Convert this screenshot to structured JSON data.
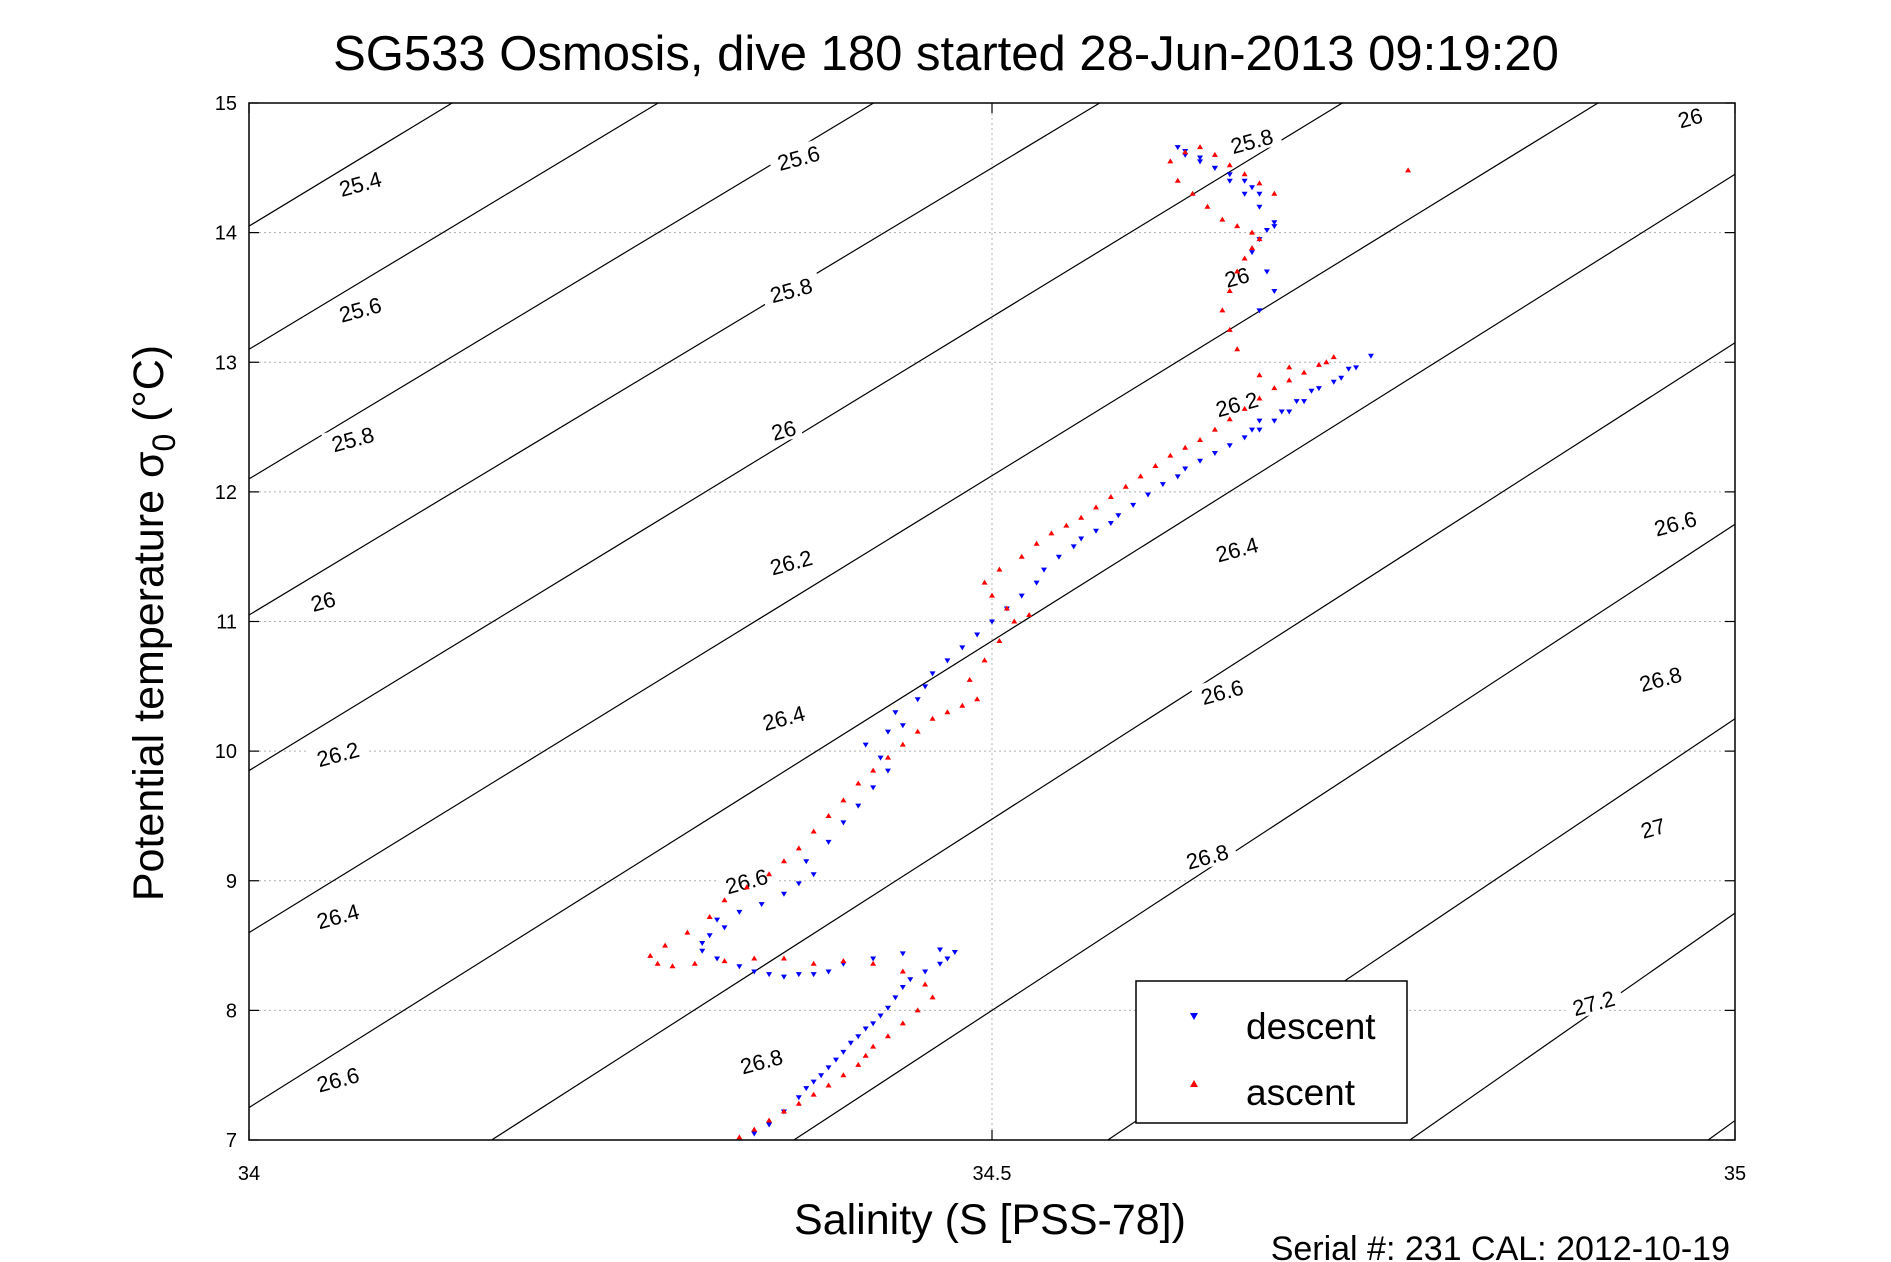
{
  "title": "SG533 Osmosis, dive 180 started 28-Jun-2013 09:19:20",
  "footer": "Serial #: 231  CAL: 2012-10-19",
  "chart_data": {
    "type": "scatter",
    "title": "SG533 Osmosis, dive 180 started 28-Jun-2013 09:19:20",
    "xlabel": "Salinity (S [PSS-78])",
    "ylabel_main": "Potential temperature σ",
    "ylabel_sub": "0",
    "ylabel_tail": " (°C)",
    "xlim": [
      34,
      35
    ],
    "ylim": [
      7,
      15
    ],
    "xticks": [
      34,
      34.5,
      35
    ],
    "xtick_labels": [
      "34",
      "34.5",
      "35"
    ],
    "yticks": [
      7,
      8,
      9,
      10,
      11,
      12,
      13,
      14,
      15
    ],
    "ytick_labels": [
      "7",
      "8",
      "9",
      "10",
      "11",
      "12",
      "13",
      "14",
      "15"
    ],
    "grid": true,
    "legend_position": "bottom-right",
    "colors": {
      "descent": "#0000ff",
      "ascent": "#ff0000",
      "contour": "#000000",
      "grid": "#b0b0b0"
    },
    "contour_levels": [
      "25.4",
      "25.6",
      "25.8",
      "26",
      "26.2",
      "26.4",
      "26.6",
      "26.8",
      "27",
      "27.2"
    ],
    "series": [
      {
        "name": "descent",
        "marker": "triangle-down",
        "x": [
          34.34,
          34.35,
          34.36,
          34.37,
          34.375,
          34.38,
          34.385,
          34.39,
          34.395,
          34.4,
          34.405,
          34.41,
          34.415,
          34.42,
          34.425,
          34.43,
          34.435,
          34.44,
          34.445,
          34.455,
          34.465,
          34.47,
          34.475,
          34.465,
          34.44,
          34.42,
          34.4,
          34.39,
          34.38,
          34.37,
          34.36,
          34.35,
          34.34,
          34.33,
          34.315,
          34.305,
          34.305,
          34.31,
          34.32,
          34.315,
          34.33,
          34.345,
          34.36,
          34.37,
          34.38,
          34.375,
          34.39,
          34.4,
          34.41,
          34.42,
          34.43,
          34.425,
          34.415,
          34.43,
          34.44,
          34.435,
          34.45,
          34.455,
          34.46,
          34.47,
          34.48,
          34.49,
          34.5,
          34.51,
          34.52,
          34.53,
          34.535,
          34.545,
          34.555,
          34.56,
          34.57,
          34.58,
          34.585,
          34.595,
          34.605,
          34.615,
          34.625,
          34.63,
          34.64,
          34.65,
          34.66,
          34.67,
          34.68,
          34.69,
          34.7,
          34.71,
          34.72,
          34.735,
          34.745,
          34.755,
          34.74,
          34.73,
          34.715,
          34.705,
          34.695,
          34.68,
          34.675,
          34.68,
          34.69,
          34.685,
          34.675,
          34.68,
          34.685,
          34.69,
          34.68,
          34.67,
          34.66,
          34.65,
          34.64,
          34.63,
          34.625,
          34.63,
          34.64,
          34.65,
          34.66,
          34.67,
          34.675,
          34.68,
          34.69
        ],
        "y": [
          7.05,
          7.12,
          7.22,
          7.33,
          7.4,
          7.45,
          7.5,
          7.56,
          7.62,
          7.68,
          7.75,
          7.8,
          7.86,
          7.9,
          7.96,
          8.02,
          8.1,
          8.18,
          8.24,
          8.3,
          8.36,
          8.4,
          8.45,
          8.47,
          8.44,
          8.4,
          8.36,
          8.3,
          8.28,
          8.28,
          8.26,
          8.28,
          8.3,
          8.34,
          8.4,
          8.46,
          8.52,
          8.58,
          8.64,
          8.7,
          8.76,
          8.82,
          8.9,
          8.98,
          9.05,
          9.15,
          9.3,
          9.45,
          9.58,
          9.72,
          9.85,
          9.95,
          10.05,
          10.15,
          10.2,
          10.3,
          10.4,
          10.5,
          10.6,
          10.7,
          10.8,
          10.9,
          11.0,
          11.1,
          11.2,
          11.3,
          11.4,
          11.5,
          11.58,
          11.64,
          11.7,
          11.76,
          11.82,
          11.9,
          11.98,
          12.06,
          12.12,
          12.18,
          12.24,
          12.3,
          12.36,
          12.42,
          12.48,
          12.55,
          12.62,
          12.7,
          12.8,
          12.88,
          12.96,
          13.05,
          12.95,
          12.85,
          12.78,
          12.7,
          12.62,
          12.55,
          12.48,
          13.4,
          13.55,
          13.7,
          13.85,
          13.95,
          14.02,
          14.08,
          14.2,
          14.3,
          14.4,
          14.5,
          14.58,
          14.63,
          14.66,
          14.6,
          14.55,
          14.5,
          14.45,
          14.4,
          14.35,
          14.3,
          14.05
        ]
      },
      {
        "name": "ascent",
        "marker": "triangle-up",
        "x": [
          34.33,
          34.34,
          34.35,
          34.36,
          34.37,
          34.38,
          34.39,
          34.4,
          34.41,
          34.415,
          34.42,
          34.43,
          34.44,
          34.45,
          34.46,
          34.455,
          34.44,
          34.42,
          34.4,
          34.38,
          34.36,
          34.34,
          34.32,
          34.3,
          34.285,
          34.275,
          34.27,
          34.28,
          34.295,
          34.31,
          34.32,
          34.335,
          34.35,
          34.36,
          34.37,
          34.38,
          34.39,
          34.4,
          34.41,
          34.42,
          34.43,
          34.44,
          34.45,
          34.46,
          34.47,
          34.48,
          34.49,
          34.485,
          34.495,
          34.505,
          34.515,
          34.525,
          34.51,
          34.5,
          34.495,
          34.505,
          34.52,
          34.53,
          34.54,
          34.55,
          34.56,
          34.57,
          34.58,
          34.59,
          34.6,
          34.61,
          34.62,
          34.63,
          34.64,
          34.65,
          34.66,
          34.67,
          34.68,
          34.69,
          34.7,
          34.71,
          34.72,
          34.73,
          34.725,
          34.7,
          34.68,
          34.665,
          34.66,
          34.655,
          34.66,
          34.665,
          34.67,
          34.675,
          34.68,
          34.675,
          34.665,
          34.655,
          34.645,
          34.635,
          34.625,
          34.62,
          34.63,
          34.64,
          34.65,
          34.66,
          34.67,
          34.68,
          34.69,
          34.78
        ],
        "y": [
          7.02,
          7.08,
          7.15,
          7.22,
          7.28,
          7.35,
          7.42,
          7.5,
          7.58,
          7.65,
          7.72,
          7.8,
          7.9,
          8.0,
          8.1,
          8.2,
          8.3,
          8.36,
          8.38,
          8.36,
          8.4,
          8.4,
          8.38,
          8.36,
          8.34,
          8.36,
          8.42,
          8.5,
          8.6,
          8.72,
          8.85,
          8.95,
          9.05,
          9.15,
          9.25,
          9.38,
          9.5,
          9.62,
          9.75,
          9.85,
          9.95,
          10.05,
          10.15,
          10.25,
          10.3,
          10.35,
          10.4,
          10.55,
          10.7,
          10.85,
          11.0,
          11.05,
          11.1,
          11.2,
          11.3,
          11.4,
          11.5,
          11.6,
          11.68,
          11.74,
          11.8,
          11.88,
          11.96,
          12.04,
          12.12,
          12.2,
          12.28,
          12.34,
          12.4,
          12.48,
          12.56,
          12.64,
          12.72,
          12.8,
          12.86,
          12.92,
          12.98,
          13.04,
          13.0,
          12.96,
          12.9,
          13.1,
          13.25,
          13.4,
          13.55,
          13.7,
          13.8,
          13.88,
          13.95,
          14.0,
          14.05,
          14.1,
          14.2,
          14.3,
          14.4,
          14.55,
          14.62,
          14.66,
          14.6,
          14.52,
          14.45,
          14.38,
          14.3,
          14.48
        ]
      }
    ]
  }
}
